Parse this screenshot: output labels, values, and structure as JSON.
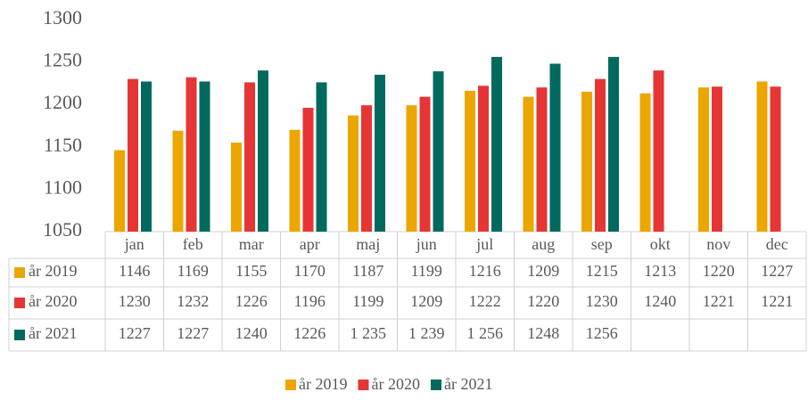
{
  "chart_data": {
    "type": "bar",
    "categories": [
      "jan",
      "feb",
      "mar",
      "apr",
      "maj",
      "jun",
      "jul",
      "aug",
      "sep",
      "okt",
      "nov",
      "dec"
    ],
    "series": [
      {
        "name": "år 2019",
        "color": "#eba600",
        "values": [
          1146,
          1169,
          1155,
          1170,
          1187,
          1199,
          1216,
          1209,
          1215,
          1213,
          1220,
          1227
        ]
      },
      {
        "name": "år 2020",
        "color": "#e63535",
        "values": [
          1230,
          1232,
          1226,
          1196,
          1199,
          1209,
          1222,
          1220,
          1230,
          1240,
          1221,
          1221
        ]
      },
      {
        "name": "år 2021",
        "color": "#006a5e",
        "values": [
          1227,
          1227,
          1240,
          1226,
          1235,
          1239,
          1256,
          1248,
          1256,
          null,
          null,
          null
        ],
        "value_labels": [
          "1227",
          "1227",
          "1240",
          "1226",
          "1 235",
          "1 239",
          "1 256",
          "1248",
          "1256",
          null,
          null,
          null
        ]
      }
    ],
    "ylim": [
      1050,
      1300
    ],
    "yticks": [
      1050,
      1100,
      1150,
      1200,
      1250,
      1300
    ],
    "grid": false,
    "legend": "bottom"
  }
}
